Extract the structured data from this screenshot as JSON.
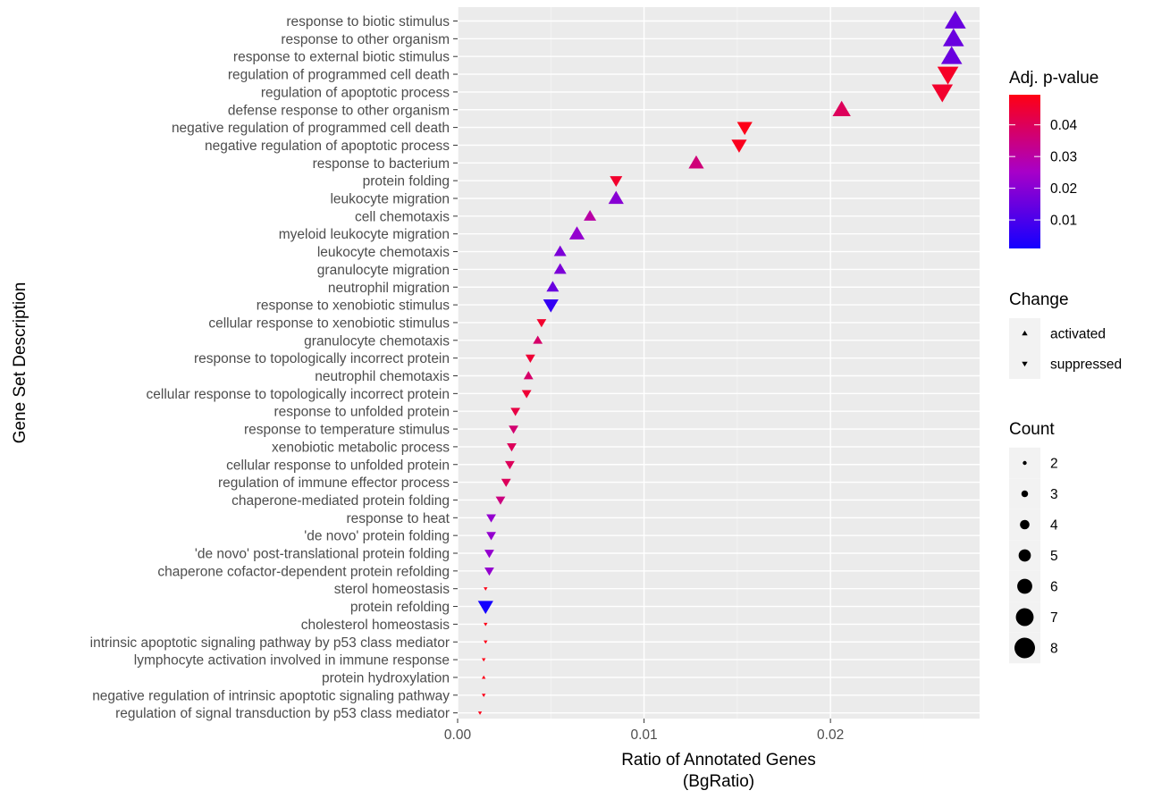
{
  "chart_data": {
    "type": "scatter",
    "xlabel": "Ratio of Annotated Genes",
    "xlabel_line2": "(BgRatio)",
    "ylabel": "Gene Set Description",
    "xlim": [
      0,
      0.028
    ],
    "x_ticks": [
      {
        "value": 0.0,
        "label": "0.00"
      },
      {
        "value": 0.01,
        "label": "0.01"
      },
      {
        "value": 0.02,
        "label": "0.02"
      }
    ],
    "grid": true,
    "panel_background": "#ebebeb",
    "color_scale": {
      "title": "Adj. p-value",
      "low_color": "#1400ff",
      "high_color": "#ff0013",
      "min": 0.001,
      "max": 0.0495,
      "ticks": [
        {
          "value": 0.01,
          "label": "0.01"
        },
        {
          "value": 0.02,
          "label": "0.02"
        },
        {
          "value": 0.03,
          "label": "0.03"
        },
        {
          "value": 0.04,
          "label": "0.04"
        }
      ]
    },
    "shape_legend": {
      "title": "Change",
      "items": [
        {
          "label": "activated",
          "shape": "triangle-up"
        },
        {
          "label": "suppressed",
          "shape": "triangle-down"
        }
      ]
    },
    "size_legend": {
      "title": "Count",
      "items": [
        {
          "label": "2",
          "value": 2
        },
        {
          "label": "3",
          "value": 3
        },
        {
          "label": "4",
          "value": 4
        },
        {
          "label": "5",
          "value": 5
        },
        {
          "label": "6",
          "value": 6
        },
        {
          "label": "7",
          "value": 7
        },
        {
          "label": "8",
          "value": 8
        }
      ]
    },
    "points": [
      {
        "label": "response to biotic stimulus",
        "x": 0.0267,
        "padj": 0.015,
        "change": "activated",
        "count": 8
      },
      {
        "label": "response to other organism",
        "x": 0.0266,
        "padj": 0.015,
        "change": "activated",
        "count": 8
      },
      {
        "label": "response to external biotic stimulus",
        "x": 0.0265,
        "padj": 0.015,
        "change": "activated",
        "count": 8
      },
      {
        "label": "regulation of programmed cell death",
        "x": 0.0263,
        "padj": 0.047,
        "change": "suppressed",
        "count": 8
      },
      {
        "label": "regulation of apoptotic process",
        "x": 0.026,
        "padj": 0.046,
        "change": "suppressed",
        "count": 8
      },
      {
        "label": "defense response to other organism",
        "x": 0.0206,
        "padj": 0.04,
        "change": "activated",
        "count": 7
      },
      {
        "label": "negative regulation of programmed cell death",
        "x": 0.0154,
        "padj": 0.049,
        "change": "suppressed",
        "count": 6
      },
      {
        "label": "negative regulation of apoptotic process",
        "x": 0.0151,
        "padj": 0.048,
        "change": "suppressed",
        "count": 6
      },
      {
        "label": "response to bacterium",
        "x": 0.0128,
        "padj": 0.036,
        "change": "activated",
        "count": 6
      },
      {
        "label": "protein folding",
        "x": 0.0085,
        "padj": 0.046,
        "change": "suppressed",
        "count": 5
      },
      {
        "label": "leukocyte migration",
        "x": 0.0085,
        "padj": 0.02,
        "change": "activated",
        "count": 6
      },
      {
        "label": "cell chemotaxis",
        "x": 0.0071,
        "padj": 0.03,
        "change": "activated",
        "count": 5
      },
      {
        "label": "myeloid leukocyte migration",
        "x": 0.0064,
        "padj": 0.022,
        "change": "activated",
        "count": 6
      },
      {
        "label": "leukocyte chemotaxis",
        "x": 0.0055,
        "padj": 0.018,
        "change": "activated",
        "count": 5
      },
      {
        "label": "granulocyte migration",
        "x": 0.0055,
        "padj": 0.018,
        "change": "activated",
        "count": 5
      },
      {
        "label": "neutrophil migration",
        "x": 0.0051,
        "padj": 0.015,
        "change": "activated",
        "count": 5
      },
      {
        "label": "response to xenobiotic stimulus",
        "x": 0.005,
        "padj": 0.006,
        "change": "suppressed",
        "count": 6
      },
      {
        "label": "cellular response to xenobiotic stimulus",
        "x": 0.0045,
        "padj": 0.046,
        "change": "suppressed",
        "count": 4
      },
      {
        "label": "granulocyte chemotaxis",
        "x": 0.0043,
        "padj": 0.038,
        "change": "activated",
        "count": 4
      },
      {
        "label": "response to topologically incorrect protein",
        "x": 0.0039,
        "padj": 0.045,
        "change": "suppressed",
        "count": 4
      },
      {
        "label": "neutrophil chemotaxis",
        "x": 0.0038,
        "padj": 0.038,
        "change": "activated",
        "count": 4
      },
      {
        "label": "cellular response to topologically incorrect protein",
        "x": 0.0037,
        "padj": 0.045,
        "change": "suppressed",
        "count": 4
      },
      {
        "label": "response to unfolded protein",
        "x": 0.0031,
        "padj": 0.043,
        "change": "suppressed",
        "count": 4
      },
      {
        "label": "response to temperature stimulus",
        "x": 0.003,
        "padj": 0.037,
        "change": "suppressed",
        "count": 4
      },
      {
        "label": "xenobiotic metabolic process",
        "x": 0.0029,
        "padj": 0.04,
        "change": "suppressed",
        "count": 4
      },
      {
        "label": "cellular response to unfolded protein",
        "x": 0.0028,
        "padj": 0.04,
        "change": "suppressed",
        "count": 4
      },
      {
        "label": "regulation of immune effector process",
        "x": 0.0026,
        "padj": 0.04,
        "change": "suppressed",
        "count": 4
      },
      {
        "label": "chaperone-mediated protein folding",
        "x": 0.0023,
        "padj": 0.035,
        "change": "suppressed",
        "count": 4
      },
      {
        "label": "response to heat",
        "x": 0.0018,
        "padj": 0.022,
        "change": "suppressed",
        "count": 4
      },
      {
        "label": "'de novo' protein folding",
        "x": 0.0018,
        "padj": 0.022,
        "change": "suppressed",
        "count": 4
      },
      {
        "label": "'de novo' post-translational protein folding",
        "x": 0.0017,
        "padj": 0.022,
        "change": "suppressed",
        "count": 4
      },
      {
        "label": "chaperone cofactor-dependent protein refolding",
        "x": 0.0017,
        "padj": 0.022,
        "change": "suppressed",
        "count": 4
      },
      {
        "label": "sterol homeostasis",
        "x": 0.0015,
        "padj": 0.049,
        "change": "suppressed",
        "count": 2
      },
      {
        "label": "protein refolding",
        "x": 0.0015,
        "padj": 0.001,
        "change": "suppressed",
        "count": 6
      },
      {
        "label": "cholesterol homeostasis",
        "x": 0.0015,
        "padj": 0.049,
        "change": "suppressed",
        "count": 2
      },
      {
        "label": "intrinsic apoptotic signaling pathway by p53 class mediator",
        "x": 0.0015,
        "padj": 0.049,
        "change": "suppressed",
        "count": 2
      },
      {
        "label": "lymphocyte activation involved in immune response",
        "x": 0.0014,
        "padj": 0.049,
        "change": "suppressed",
        "count": 2
      },
      {
        "label": "protein hydroxylation",
        "x": 0.0014,
        "padj": 0.049,
        "change": "activated",
        "count": 2
      },
      {
        "label": "negative regulation of intrinsic apoptotic signaling pathway",
        "x": 0.0014,
        "padj": 0.049,
        "change": "suppressed",
        "count": 2
      },
      {
        "label": "regulation of signal transduction by p53 class mediator",
        "x": 0.0012,
        "padj": 0.049,
        "change": "suppressed",
        "count": 2
      }
    ]
  }
}
